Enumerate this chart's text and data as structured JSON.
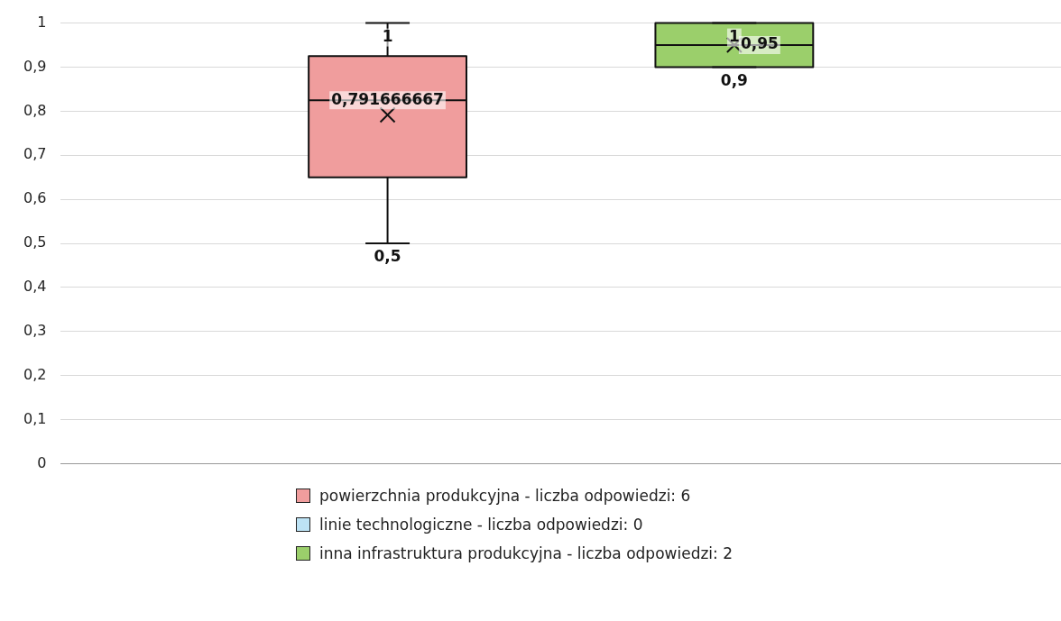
{
  "chart_data": {
    "type": "box",
    "categories": [
      null
    ],
    "series": [
      {
        "name": "powierzchnia produkcyjna - liczba odpowiedzi: 6",
        "color": "#f09d9d",
        "boxes": [
          {
            "low": 0.5,
            "q1": 0.65,
            "median": 0.825,
            "q3": 0.925,
            "high": 1,
            "mean": 0.791666667
          }
        ]
      },
      {
        "name": "linie technologiczne - liczba odpowiedzi: 0",
        "color": "#bde3f5",
        "boxes": [
          null
        ]
      },
      {
        "name": "inna infrastruktura produkcyjna - liczba odpowiedzi: 2",
        "color": "#9bcf6b",
        "boxes": [
          {
            "low": 0.9,
            "q1": 0.9,
            "median": 0.95,
            "q3": 1,
            "high": 1,
            "mean": 0.95
          }
        ]
      }
    ],
    "ylim": [
      0,
      1
    ],
    "yticks": [
      0,
      {
        "value": 0.1,
        "label": "0,1"
      },
      {
        "value": 0.2,
        "label": "0,2"
      },
      {
        "value": 0.3,
        "label": "0,3"
      },
      {
        "value": 0.4,
        "label": "0,4"
      },
      {
        "value": 0.5,
        "label": "0,5"
      },
      {
        "value": 0.6,
        "label": "0,6"
      },
      {
        "value": 0.7,
        "label": "0,7"
      },
      {
        "value": 0.8,
        "label": "0,8"
      },
      {
        "value": 0.9,
        "label": "0,9"
      },
      1
    ],
    "grid": "y",
    "legend": "bottom",
    "marker": "cross",
    "tick_labels": "y",
    "annotations": [
      {
        "text": "1",
        "y": 1
      },
      "0,791666667",
      {
        "text": "0,5",
        "y": 0.5
      },
      {
        "text": "1",
        "y": 1
      },
      {
        "text": "0,95",
        "y": 0.95
      },
      {
        "text": "0,9",
        "y": 0.9
      }
    ]
  }
}
